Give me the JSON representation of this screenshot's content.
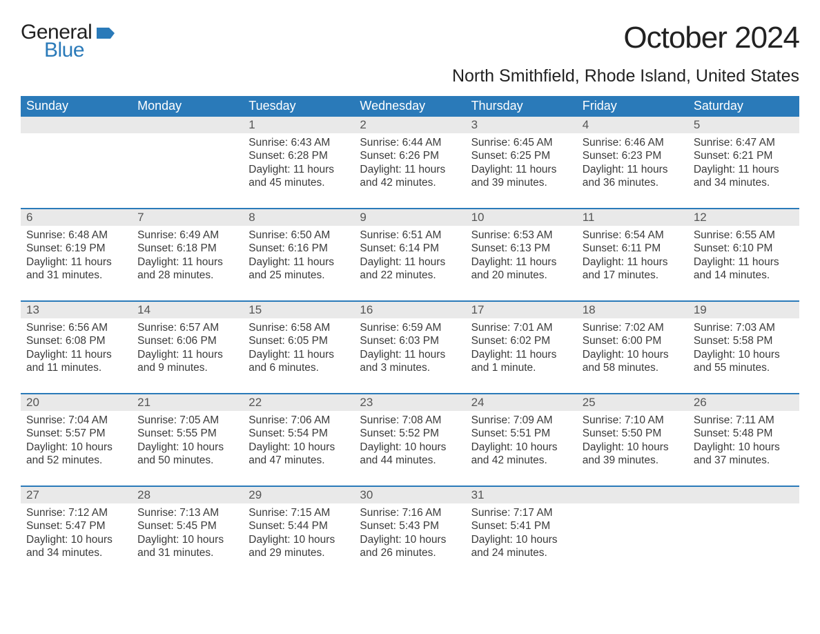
{
  "brand": {
    "word1": "General",
    "word2": "Blue",
    "flag_color": "#2a7ab9"
  },
  "title": "October 2024",
  "location": "North Smithfield, Rhode Island, United States",
  "colors": {
    "header_bg": "#2a7ab9",
    "header_text": "#ffffff",
    "daynum_bg": "#e9e9e9",
    "row_divider": "#2a7ab9",
    "body_text": "#3a3a3a"
  },
  "weekdays": [
    "Sunday",
    "Monday",
    "Tuesday",
    "Wednesday",
    "Thursday",
    "Friday",
    "Saturday"
  ],
  "weeks": [
    [
      null,
      null,
      {
        "n": "1",
        "sr": "Sunrise: 6:43 AM",
        "ss": "Sunset: 6:28 PM",
        "dl": "Daylight: 11 hours and 45 minutes."
      },
      {
        "n": "2",
        "sr": "Sunrise: 6:44 AM",
        "ss": "Sunset: 6:26 PM",
        "dl": "Daylight: 11 hours and 42 minutes."
      },
      {
        "n": "3",
        "sr": "Sunrise: 6:45 AM",
        "ss": "Sunset: 6:25 PM",
        "dl": "Daylight: 11 hours and 39 minutes."
      },
      {
        "n": "4",
        "sr": "Sunrise: 6:46 AM",
        "ss": "Sunset: 6:23 PM",
        "dl": "Daylight: 11 hours and 36 minutes."
      },
      {
        "n": "5",
        "sr": "Sunrise: 6:47 AM",
        "ss": "Sunset: 6:21 PM",
        "dl": "Daylight: 11 hours and 34 minutes."
      }
    ],
    [
      {
        "n": "6",
        "sr": "Sunrise: 6:48 AM",
        "ss": "Sunset: 6:19 PM",
        "dl": "Daylight: 11 hours and 31 minutes."
      },
      {
        "n": "7",
        "sr": "Sunrise: 6:49 AM",
        "ss": "Sunset: 6:18 PM",
        "dl": "Daylight: 11 hours and 28 minutes."
      },
      {
        "n": "8",
        "sr": "Sunrise: 6:50 AM",
        "ss": "Sunset: 6:16 PM",
        "dl": "Daylight: 11 hours and 25 minutes."
      },
      {
        "n": "9",
        "sr": "Sunrise: 6:51 AM",
        "ss": "Sunset: 6:14 PM",
        "dl": "Daylight: 11 hours and 22 minutes."
      },
      {
        "n": "10",
        "sr": "Sunrise: 6:53 AM",
        "ss": "Sunset: 6:13 PM",
        "dl": "Daylight: 11 hours and 20 minutes."
      },
      {
        "n": "11",
        "sr": "Sunrise: 6:54 AM",
        "ss": "Sunset: 6:11 PM",
        "dl": "Daylight: 11 hours and 17 minutes."
      },
      {
        "n": "12",
        "sr": "Sunrise: 6:55 AM",
        "ss": "Sunset: 6:10 PM",
        "dl": "Daylight: 11 hours and 14 minutes."
      }
    ],
    [
      {
        "n": "13",
        "sr": "Sunrise: 6:56 AM",
        "ss": "Sunset: 6:08 PM",
        "dl": "Daylight: 11 hours and 11 minutes."
      },
      {
        "n": "14",
        "sr": "Sunrise: 6:57 AM",
        "ss": "Sunset: 6:06 PM",
        "dl": "Daylight: 11 hours and 9 minutes."
      },
      {
        "n": "15",
        "sr": "Sunrise: 6:58 AM",
        "ss": "Sunset: 6:05 PM",
        "dl": "Daylight: 11 hours and 6 minutes."
      },
      {
        "n": "16",
        "sr": "Sunrise: 6:59 AM",
        "ss": "Sunset: 6:03 PM",
        "dl": "Daylight: 11 hours and 3 minutes."
      },
      {
        "n": "17",
        "sr": "Sunrise: 7:01 AM",
        "ss": "Sunset: 6:02 PM",
        "dl": "Daylight: 11 hours and 1 minute."
      },
      {
        "n": "18",
        "sr": "Sunrise: 7:02 AM",
        "ss": "Sunset: 6:00 PM",
        "dl": "Daylight: 10 hours and 58 minutes."
      },
      {
        "n": "19",
        "sr": "Sunrise: 7:03 AM",
        "ss": "Sunset: 5:58 PM",
        "dl": "Daylight: 10 hours and 55 minutes."
      }
    ],
    [
      {
        "n": "20",
        "sr": "Sunrise: 7:04 AM",
        "ss": "Sunset: 5:57 PM",
        "dl": "Daylight: 10 hours and 52 minutes."
      },
      {
        "n": "21",
        "sr": "Sunrise: 7:05 AM",
        "ss": "Sunset: 5:55 PM",
        "dl": "Daylight: 10 hours and 50 minutes."
      },
      {
        "n": "22",
        "sr": "Sunrise: 7:06 AM",
        "ss": "Sunset: 5:54 PM",
        "dl": "Daylight: 10 hours and 47 minutes."
      },
      {
        "n": "23",
        "sr": "Sunrise: 7:08 AM",
        "ss": "Sunset: 5:52 PM",
        "dl": "Daylight: 10 hours and 44 minutes."
      },
      {
        "n": "24",
        "sr": "Sunrise: 7:09 AM",
        "ss": "Sunset: 5:51 PM",
        "dl": "Daylight: 10 hours and 42 minutes."
      },
      {
        "n": "25",
        "sr": "Sunrise: 7:10 AM",
        "ss": "Sunset: 5:50 PM",
        "dl": "Daylight: 10 hours and 39 minutes."
      },
      {
        "n": "26",
        "sr": "Sunrise: 7:11 AM",
        "ss": "Sunset: 5:48 PM",
        "dl": "Daylight: 10 hours and 37 minutes."
      }
    ],
    [
      {
        "n": "27",
        "sr": "Sunrise: 7:12 AM",
        "ss": "Sunset: 5:47 PM",
        "dl": "Daylight: 10 hours and 34 minutes."
      },
      {
        "n": "28",
        "sr": "Sunrise: 7:13 AM",
        "ss": "Sunset: 5:45 PM",
        "dl": "Daylight: 10 hours and 31 minutes."
      },
      {
        "n": "29",
        "sr": "Sunrise: 7:15 AM",
        "ss": "Sunset: 5:44 PM",
        "dl": "Daylight: 10 hours and 29 minutes."
      },
      {
        "n": "30",
        "sr": "Sunrise: 7:16 AM",
        "ss": "Sunset: 5:43 PM",
        "dl": "Daylight: 10 hours and 26 minutes."
      },
      {
        "n": "31",
        "sr": "Sunrise: 7:17 AM",
        "ss": "Sunset: 5:41 PM",
        "dl": "Daylight: 10 hours and 24 minutes."
      },
      null,
      null
    ]
  ]
}
